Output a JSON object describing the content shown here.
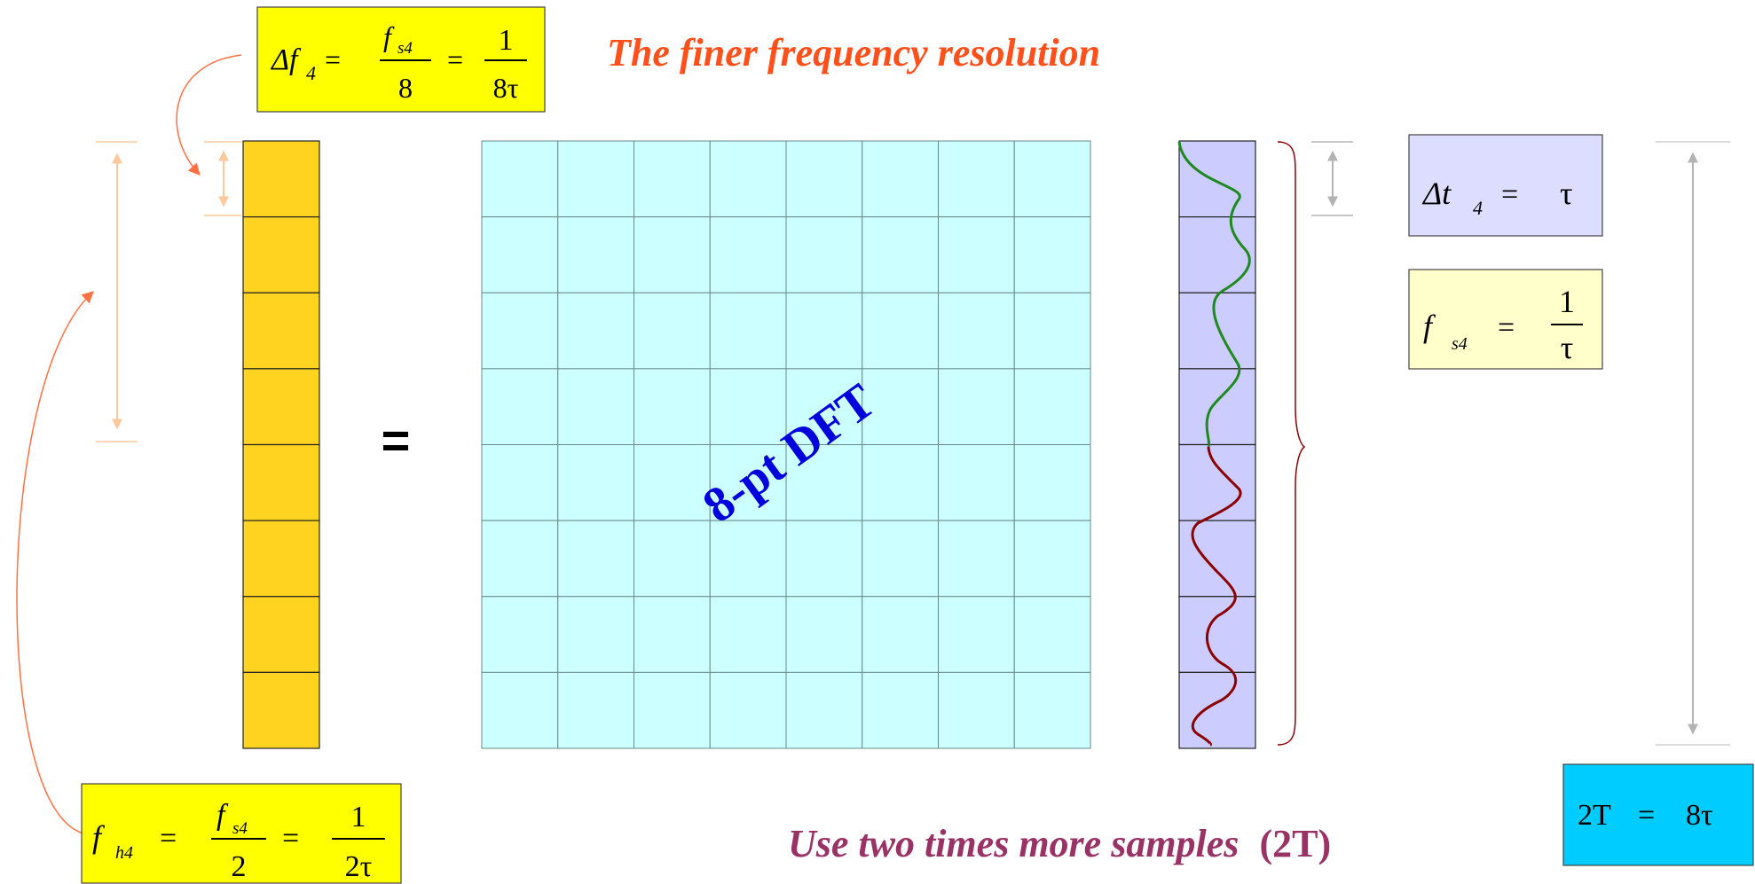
{
  "title": "The finer frequency resolution",
  "bottom_caption": {
    "main": "Use two times more samples",
    "suffix": "(2T)"
  },
  "dft_label": "8-pt DFT",
  "equals": "=",
  "formulas": {
    "delta_f4": {
      "lhs": "Δf",
      "lhs_sub": "4",
      "mid_num": "f",
      "mid_num_sub": "s4",
      "mid_den": "8",
      "rhs_num": "1",
      "rhs_den": "8τ"
    },
    "delta_t4": {
      "lhs": "Δt",
      "lhs_sub": "4",
      "rhs": "τ"
    },
    "f_s4": {
      "lhs": "f",
      "lhs_sub": "s4",
      "rhs_num": "1",
      "rhs_den": "τ"
    },
    "f_h4": {
      "lhs": "f",
      "lhs_sub": "h4",
      "mid_num": "f",
      "mid_num_sub": "s4",
      "mid_den": "2",
      "rhs_num": "1",
      "rhs_den": "2τ"
    },
    "two_T": {
      "lhs": "2T",
      "rhs": "8τ"
    }
  },
  "colors": {
    "title": "#ff4f1a",
    "caption": "#993366",
    "dft_label": "#0000dd",
    "freq_column": "#ffd320",
    "matrix": "#ccffff",
    "time_column": "#ccccff",
    "curve_green": "#1e8a1e",
    "curve_red": "#8b0000",
    "box_yellow": "#ffff00",
    "box_light_yellow": "#ffffcc",
    "box_lavender": "#ddddff",
    "box_cyan": "#00ccff",
    "arrow_orange": "#ff7043",
    "marker_peach": "#ffc89a",
    "marker_gray": "#b3b3b3"
  },
  "grid": {
    "rows": 8,
    "cols": 8
  }
}
